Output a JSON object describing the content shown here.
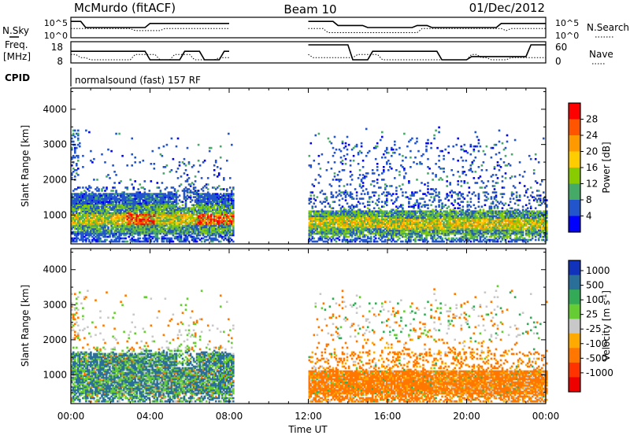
{
  "header": {
    "station": "McMurdo (fitACF)",
    "beam": "Beam 10",
    "date": "01/Dec/2012"
  },
  "summary_labels": {
    "nsky": "N.Sky",
    "nsearch": "N.Search",
    "freq_line1": "Freq.",
    "freq_line2": "[MHz]",
    "nave": "Nave",
    "cpid": "CPID",
    "cpid_value": "normalsound (fast) 157 RF"
  },
  "chart_data": [
    {
      "type": "line",
      "panel": "noise",
      "yticks_left": [
        "10^5",
        "10^0"
      ],
      "yticks_right": [
        "10^5",
        "10^0"
      ],
      "data_gap_hours": [
        8.2,
        12.0
      ]
    },
    {
      "type": "line",
      "panel": "frequency_nave",
      "yticks_left": [
        "18",
        "8"
      ],
      "yticks_right": [
        "60",
        "0"
      ],
      "data_gap_hours": [
        8.2,
        12.0
      ]
    },
    {
      "type": "heatmap",
      "panel": "power",
      "ylabel": "Slant Range [km]",
      "yticks": [
        "1000",
        "2000",
        "3000",
        "4000"
      ],
      "ylim": [
        180,
        4600
      ],
      "colorbar_label": "Power [dB]",
      "colorbar_ticks": [
        "28",
        "24",
        "20",
        "16",
        "12",
        "8",
        "4"
      ],
      "colorbar_colors": [
        "#ff0000",
        "#ff5500",
        "#ff9900",
        "#ffcc00",
        "#88cc00",
        "#44aa66",
        "#2255cc",
        "#0000ff"
      ],
      "xlim_hours": [
        0,
        24
      ],
      "data_gap_hours": [
        8.2,
        12.0
      ]
    },
    {
      "type": "heatmap",
      "panel": "velocity",
      "ylabel": "Slant Range [km]",
      "yticks": [
        "1000",
        "2000",
        "3000",
        "4000"
      ],
      "ylim": [
        180,
        4600
      ],
      "colorbar_label": "Velocity [m s",
      "colorbar_label_sup": "-1",
      "colorbar_label_end": "]",
      "colorbar_ticks": [
        "1000",
        "500",
        "100",
        "25",
        "-25",
        "-100",
        "-500",
        "-1000"
      ],
      "colorbar_colors": [
        "#1133bb",
        "#2a6e9a",
        "#33aa55",
        "#66cc33",
        "#c8c8c8",
        "#ffaa00",
        "#ff7700",
        "#ff3300",
        "#ee0000"
      ],
      "xlim_hours": [
        0,
        24
      ],
      "data_gap_hours": [
        8.2,
        12.0
      ]
    }
  ],
  "xaxis": {
    "ticks": [
      "00:00",
      "04:00",
      "08:00",
      "12:00",
      "16:00",
      "20:00",
      "00:00"
    ],
    "label": "Time UT"
  }
}
